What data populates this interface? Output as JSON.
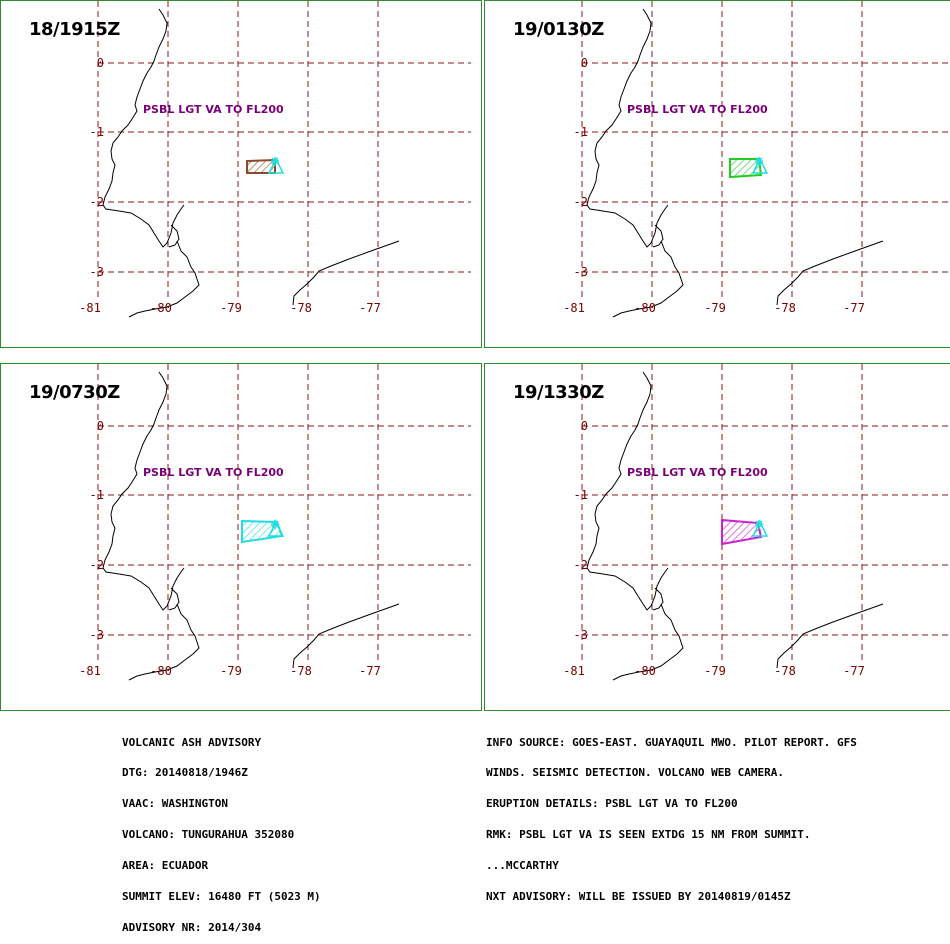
{
  "panels": [
    {
      "time": "18/1915Z",
      "label": "PSBL LGT VA TO FL200",
      "ash_color": "#8b4a2b"
    },
    {
      "time": "19/0130Z",
      "label": "PSBL LGT VA TO FL200",
      "ash_color": "#22cc22"
    },
    {
      "time": "19/0730Z",
      "label": "PSBL LGT VA TO FL200",
      "ash_color": "#22dddd"
    },
    {
      "time": "19/1330Z",
      "label": "PSBL LGT VA TO FL200",
      "ash_color": "#cc22cc"
    }
  ],
  "grid": {
    "lat_labels": [
      "0",
      "-1",
      "-2",
      "-3"
    ],
    "lon_labels": [
      "-81",
      "-80",
      "-79",
      "-78",
      "-77"
    ],
    "line_color": "#8b1a1a"
  },
  "volcano_color": "#22dddd",
  "advisory_left": [
    "VOLCANIC ASH ADVISORY",
    "DTG: 20140818/1946Z",
    "VAAC: WASHINGTON",
    "VOLCANO: TUNGURAHUA 352080",
    "AREA: ECUADOR",
    "SUMMIT ELEV: 16480 FT (5023 M)",
    "ADVISORY NR: 2014/304"
  ],
  "advisory_right": [
    "INFO SOURCE: GOES-EAST. GUAYAQUIL MWO. PILOT REPORT. GFS",
    "WINDS. SEISMIC DETECTION. VOLCANO WEB CAMERA.",
    "ERUPTION DETAILS: PSBL LGT VA TO FL200",
    "RMK: PSBL LGT VA IS SEEN EXTDG 15 NM FROM SUMMIT.",
    "...MCCARTHY",
    "NXT ADVISORY: WILL BE ISSUED BY 20140819/0145Z"
  ]
}
